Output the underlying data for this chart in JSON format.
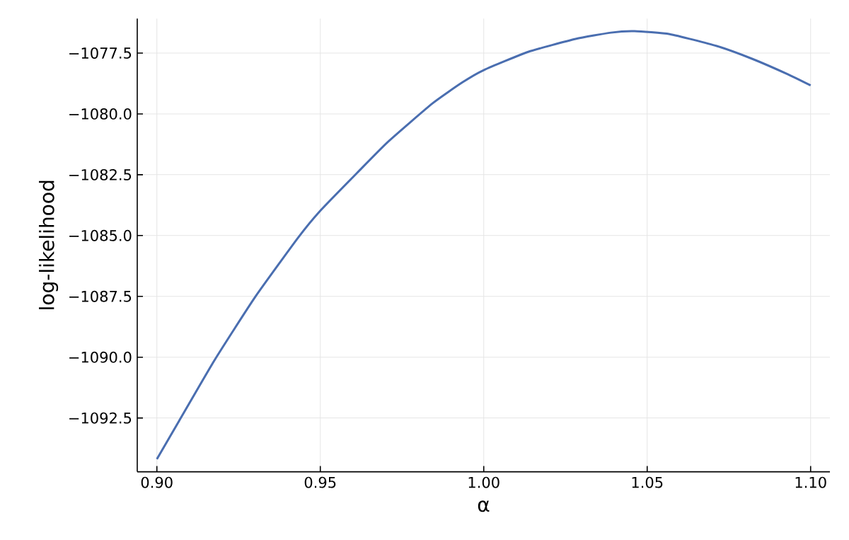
{
  "chart_data": {
    "type": "line",
    "xlabel": "α",
    "ylabel": "log-likelihood",
    "xlim": [
      0.894,
      1.1059
    ],
    "ylim": [
      -1094.71,
      -1076.08
    ],
    "xticks": [
      {
        "value": 0.9,
        "label": "0.90"
      },
      {
        "value": 0.95,
        "label": "0.95"
      },
      {
        "value": 1.0,
        "label": "1.00"
      },
      {
        "value": 1.05,
        "label": "1.05"
      },
      {
        "value": 1.1,
        "label": "1.10"
      }
    ],
    "yticks": [
      {
        "value": -1092.5,
        "label": "−1092.5"
      },
      {
        "value": -1090.0,
        "label": "−1090.0"
      },
      {
        "value": -1087.5,
        "label": "−1087.5"
      },
      {
        "value": -1085.0,
        "label": "−1085.0"
      },
      {
        "value": -1082.5,
        "label": "−1082.5"
      },
      {
        "value": -1080.0,
        "label": "−1080.0"
      },
      {
        "value": -1077.5,
        "label": "−1077.5"
      }
    ],
    "grid": true,
    "series": [
      {
        "color": "#4a6eb0",
        "x": [
          0.9,
          0.9068,
          0.9177,
          0.93,
          0.9432,
          0.95,
          0.9615,
          0.9706,
          0.9843,
          0.9934,
          1.0,
          1.0136,
          1.0281,
          1.0389,
          1.0461,
          1.0569,
          1.0713,
          1.0822,
          1.093,
          1.1
        ],
        "values": [
          -1094.19,
          -1092.62,
          -1090.11,
          -1087.54,
          -1085.09,
          -1083.98,
          -1082.39,
          -1081.16,
          -1079.57,
          -1078.71,
          -1078.2,
          -1077.45,
          -1076.92,
          -1076.66,
          -1076.6,
          -1076.72,
          -1077.21,
          -1077.74,
          -1078.37,
          -1078.83
        ]
      }
    ]
  }
}
